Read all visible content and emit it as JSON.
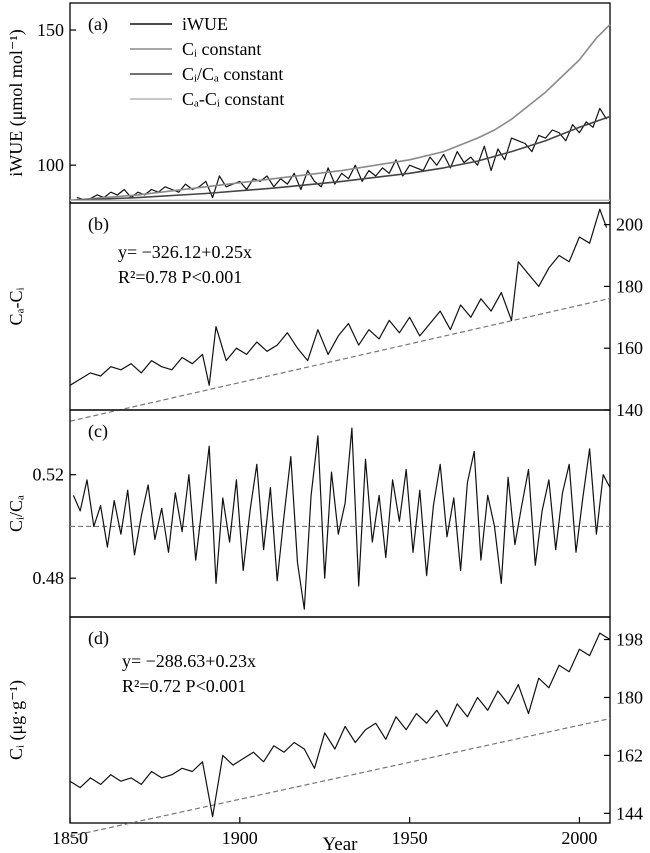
{
  "colors": {
    "frame": "#000000",
    "iwue": "#111111",
    "ci_constant": "#8a8a8a",
    "ci_ca_constant": "#444444",
    "ca_ci_constant": "#b5b5b5",
    "series_line": "#111111",
    "trend": "#777777"
  },
  "chart_data": [
    {
      "panel": "(a)",
      "type": "line",
      "ylabel": "iWUE (μmol mol⁻¹)",
      "xlim": [
        1850,
        2009
      ],
      "ylim": [
        86,
        160
      ],
      "yticks": [
        100,
        150
      ],
      "legend": [
        "iWUE",
        "Cᵢ constant",
        "Cᵢ/Cₐ constant",
        "Cₐ-Cᵢ constant"
      ],
      "series": [
        {
          "name": "iWUE",
          "x": [
            1852,
            1855,
            1858,
            1860,
            1862,
            1864,
            1866,
            1868,
            1870,
            1872,
            1874,
            1876,
            1878,
            1880,
            1882,
            1884,
            1886,
            1888,
            1890,
            1892,
            1894,
            1896,
            1898,
            1900,
            1902,
            1904,
            1906,
            1908,
            1910,
            1912,
            1914,
            1916,
            1918,
            1920,
            1922,
            1924,
            1926,
            1928,
            1930,
            1932,
            1934,
            1936,
            1938,
            1940,
            1942,
            1944,
            1946,
            1948,
            1950,
            1952,
            1954,
            1956,
            1958,
            1960,
            1962,
            1964,
            1966,
            1968,
            1970,
            1972,
            1974,
            1976,
            1978,
            1980,
            1982,
            1984,
            1986,
            1988,
            1990,
            1992,
            1994,
            1996,
            1998,
            2000,
            2002,
            2004,
            2006,
            2008
          ],
          "y": [
            88,
            87,
            89,
            88,
            90,
            89,
            91,
            88,
            90,
            89,
            91,
            90,
            92,
            91,
            90,
            93,
            91,
            92,
            94,
            88,
            96,
            92,
            93,
            94,
            91,
            95,
            94,
            96,
            92,
            95,
            93,
            97,
            91,
            98,
            94,
            92,
            99,
            93,
            97,
            95,
            100,
            94,
            98,
            96,
            99,
            97,
            102,
            96,
            100,
            99,
            98,
            103,
            100,
            104,
            99,
            105,
            101,
            103,
            100,
            107,
            98,
            106,
            102,
            110,
            109,
            108,
            105,
            111,
            110,
            113,
            112,
            109,
            115,
            112,
            116,
            114,
            121,
            117
          ]
        },
        {
          "name": "Cᵢ constant",
          "x": [
            1850,
            1870,
            1890,
            1910,
            1930,
            1950,
            1960,
            1970,
            1975,
            1980,
            1985,
            1990,
            1995,
            2000,
            2005,
            2009
          ],
          "y": [
            87,
            89,
            92,
            95,
            98,
            102,
            105,
            110,
            113,
            117,
            122,
            127,
            133,
            139,
            147,
            152
          ]
        },
        {
          "name": "Cᵢ/Cₐ constant",
          "x": [
            1850,
            1870,
            1890,
            1910,
            1930,
            1950,
            1960,
            1970,
            1980,
            1990,
            2000,
            2009
          ],
          "y": [
            87,
            88,
            89.5,
            91.5,
            94,
            97,
            99,
            101.5,
            105,
            109,
            114,
            118
          ]
        },
        {
          "name": "Cₐ-Cᵢ constant",
          "x": [
            1850,
            2009
          ],
          "y": [
            87,
            87
          ]
        }
      ]
    },
    {
      "panel": "(b)",
      "type": "line",
      "ylabel": "Cₐ-Cᵢ",
      "xlim": [
        1850,
        2009
      ],
      "ylim": [
        140,
        207
      ],
      "yticks": [
        140,
        160,
        180,
        200
      ],
      "equation": "y= −326.12+0.25x",
      "r2_label": "R²=0.78   P<0.001",
      "trend": {
        "intercept": -326.12,
        "slope": 0.25
      },
      "series": [
        {
          "name": "Cₐ-Cᵢ",
          "x": [
            1850,
            1853,
            1856,
            1859,
            1862,
            1865,
            1868,
            1871,
            1874,
            1877,
            1880,
            1883,
            1886,
            1889,
            1891,
            1893,
            1896,
            1899,
            1902,
            1905,
            1908,
            1911,
            1914,
            1917,
            1920,
            1923,
            1926,
            1929,
            1932,
            1935,
            1938,
            1941,
            1944,
            1947,
            1950,
            1953,
            1956,
            1959,
            1962,
            1965,
            1968,
            1971,
            1974,
            1977,
            1980,
            1982,
            1985,
            1988,
            1991,
            1994,
            1997,
            2000,
            2003,
            2006,
            2008
          ],
          "y": [
            148,
            150,
            152,
            151,
            154,
            153,
            155,
            152,
            156,
            154,
            153,
            157,
            155,
            158,
            148,
            167,
            156,
            160,
            158,
            162,
            159,
            161,
            165,
            160,
            156,
            166,
            158,
            164,
            168,
            161,
            166,
            163,
            169,
            165,
            170,
            164,
            168,
            172,
            166,
            174,
            170,
            176,
            172,
            178,
            169,
            188,
            184,
            180,
            186,
            190,
            188,
            196,
            194,
            205,
            199
          ]
        }
      ]
    },
    {
      "panel": "(c)",
      "type": "line",
      "ylabel": "Cᵢ/Cₐ",
      "xlim": [
        1850,
        2009
      ],
      "ylim": [
        0.465,
        0.545
      ],
      "yticks": [
        0.48,
        0.52
      ],
      "mean": 0.5,
      "series": [
        {
          "name": "Cᵢ/Cₐ",
          "x": [
            1851,
            1853,
            1855,
            1857,
            1859,
            1861,
            1863,
            1865,
            1867,
            1869,
            1871,
            1873,
            1875,
            1877,
            1879,
            1881,
            1883,
            1885,
            1887,
            1889,
            1891,
            1893,
            1895,
            1897,
            1899,
            1901,
            1903,
            1905,
            1907,
            1909,
            1911,
            1913,
            1915,
            1917,
            1919,
            1921,
            1923,
            1925,
            1927,
            1929,
            1931,
            1933,
            1935,
            1937,
            1939,
            1941,
            1943,
            1945,
            1947,
            1949,
            1951,
            1953,
            1955,
            1957,
            1959,
            1961,
            1963,
            1965,
            1967,
            1969,
            1971,
            1973,
            1975,
            1977,
            1979,
            1981,
            1983,
            1985,
            1987,
            1989,
            1991,
            1993,
            1995,
            1997,
            1999,
            2001,
            2003,
            2005,
            2007,
            2009
          ],
          "y": [
            0.512,
            0.506,
            0.518,
            0.5,
            0.508,
            0.492,
            0.51,
            0.497,
            0.514,
            0.489,
            0.504,
            0.516,
            0.495,
            0.507,
            0.49,
            0.513,
            0.498,
            0.52,
            0.487,
            0.509,
            0.531,
            0.478,
            0.511,
            0.494,
            0.518,
            0.483,
            0.506,
            0.524,
            0.491,
            0.515,
            0.479,
            0.504,
            0.527,
            0.486,
            0.468,
            0.512,
            0.535,
            0.48,
            0.521,
            0.497,
            0.509,
            0.538,
            0.477,
            0.526,
            0.494,
            0.512,
            0.488,
            0.518,
            0.502,
            0.522,
            0.49,
            0.514,
            0.481,
            0.508,
            0.524,
            0.496,
            0.511,
            0.483,
            0.517,
            0.529,
            0.487,
            0.512,
            0.5,
            0.478,
            0.519,
            0.493,
            0.508,
            0.522,
            0.485,
            0.506,
            0.518,
            0.491,
            0.513,
            0.524,
            0.49,
            0.511,
            0.53,
            0.497,
            0.52,
            0.515
          ]
        }
      ]
    },
    {
      "panel": "(d)",
      "type": "line",
      "ylabel": "Cᵢ (μg·g⁻¹)",
      "xlabel": "Year",
      "xlim": [
        1850,
        2009
      ],
      "xticks": [
        1850,
        1900,
        1950,
        2000
      ],
      "ylim": [
        141,
        205
      ],
      "yticks": [
        144,
        162,
        180,
        198
      ],
      "equation": "y= −288.63+0.23x",
      "r2_label": "R²=0.72   P<0.001",
      "trend": {
        "intercept": -288.63,
        "slope": 0.23
      },
      "series": [
        {
          "name": "Cᵢ",
          "x": [
            1850,
            1853,
            1856,
            1859,
            1862,
            1865,
            1868,
            1871,
            1874,
            1877,
            1880,
            1883,
            1886,
            1889,
            1892,
            1895,
            1898,
            1901,
            1904,
            1907,
            1910,
            1913,
            1916,
            1919,
            1922,
            1925,
            1928,
            1931,
            1934,
            1937,
            1940,
            1943,
            1946,
            1949,
            1952,
            1955,
            1958,
            1961,
            1964,
            1967,
            1970,
            1973,
            1976,
            1979,
            1982,
            1985,
            1988,
            1991,
            1994,
            1997,
            2000,
            2003,
            2006,
            2009
          ],
          "y": [
            154,
            152,
            155,
            153,
            156,
            154,
            155,
            153,
            157,
            155,
            156,
            158,
            157,
            160,
            143,
            162,
            159,
            161,
            163,
            160,
            165,
            163,
            166,
            164,
            158,
            169,
            164,
            171,
            166,
            170,
            172,
            167,
            174,
            170,
            175,
            172,
            176,
            171,
            178,
            174,
            180,
            176,
            182,
            178,
            184,
            175,
            186,
            183,
            190,
            188,
            195,
            193,
            200,
            198
          ]
        }
      ]
    }
  ]
}
